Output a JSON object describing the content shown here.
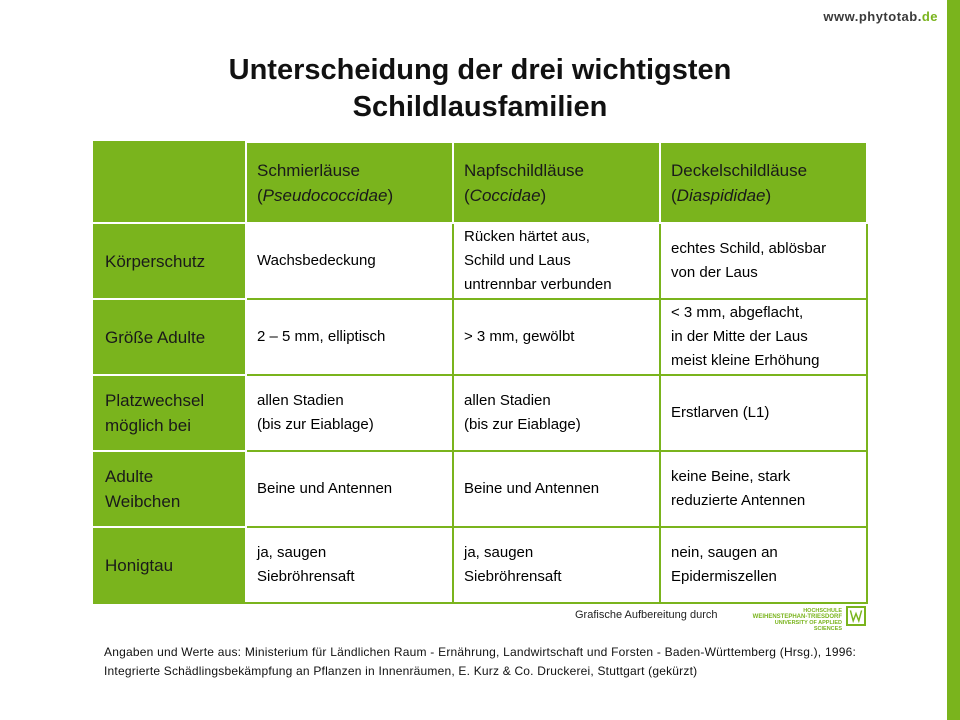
{
  "site": {
    "url_main": "www.phytotab.",
    "url_tld": "de"
  },
  "title": {
    "line1": "Unterscheidung der drei wichtigsten",
    "line2": "Schildlausfamilien"
  },
  "colors": {
    "accent": "#7ab41d"
  },
  "table": {
    "columns": [
      {
        "name": "Schmierläuse",
        "latin": "Pseudococcidae"
      },
      {
        "name": "Napfschildläuse",
        "latin": "Coccidae"
      },
      {
        "name": "Deckelschildläuse",
        "latin": "Diaspididae"
      }
    ],
    "rows": [
      {
        "label": [
          "Körperschutz"
        ],
        "cells": [
          [
            "Wachsbedeckung"
          ],
          [
            "Rücken härtet aus,",
            "Schild und Laus",
            "untrennbar verbunden"
          ],
          [
            "echtes Schild, ablösbar",
            "von der Laus"
          ]
        ]
      },
      {
        "label": [
          "Größe Adulte"
        ],
        "cells": [
          [
            "2 – 5 mm, elliptisch"
          ],
          [
            "> 3 mm, gewölbt"
          ],
          [
            "< 3 mm, abgeflacht,",
            "in der Mitte der Laus",
            "meist kleine Erhöhung"
          ]
        ]
      },
      {
        "label": [
          "Platzwechsel",
          "möglich bei"
        ],
        "cells": [
          [
            "allen Stadien",
            "(bis zur Eiablage)"
          ],
          [
            "allen Stadien",
            "(bis zur Eiablage)"
          ],
          [
            "Erstlarven (L1)"
          ]
        ]
      },
      {
        "label": [
          "Adulte",
          "Weibchen"
        ],
        "cells": [
          [
            "Beine und Antennen"
          ],
          [
            "Beine und Antennen"
          ],
          [
            "keine Beine, stark",
            "reduzierte Antennen"
          ]
        ]
      },
      {
        "label": [
          "Honigtau"
        ],
        "cells": [
          [
            "ja, saugen",
            "Siebröhrensaft"
          ],
          [
            "ja, saugen",
            "Siebröhrensaft"
          ],
          [
            "nein, saugen an",
            "Epidermiszellen"
          ]
        ]
      }
    ]
  },
  "credit": "Grafische Aufbereitung durch",
  "logo": {
    "line1": "HOCHSCHULE",
    "line2": "WEIHENSTEPHAN-TRIESDORF",
    "line3": "UNIVERSITY OF APPLIED SCIENCES",
    "mark": "W"
  },
  "source": "Angaben und Werte aus: Ministerium für Ländlichen Raum - Ernährung, Landwirtschaft und Forsten - Baden-Württemberg (Hrsg.), 1996: Integrierte Schädlingsbekämpfung an Pflanzen in Innenräumen, E. Kurz & Co. Druckerei, Stuttgart (gekürzt)"
}
